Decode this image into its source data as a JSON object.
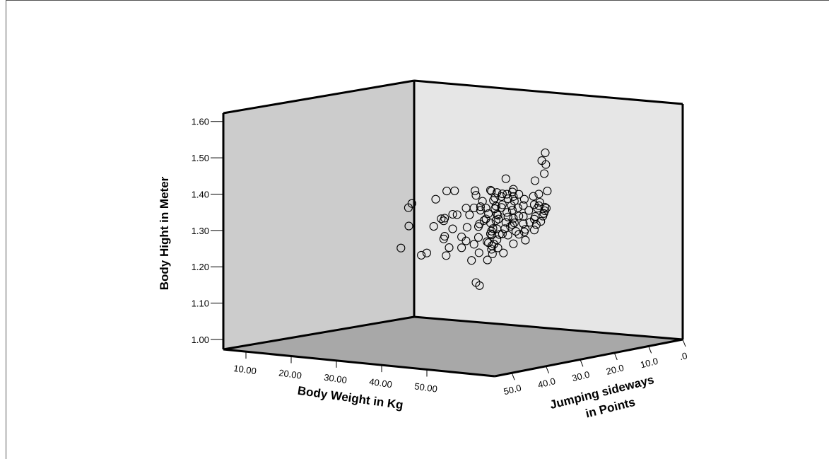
{
  "chart_data": {
    "type": "scatter",
    "subtype": "3d-scatter",
    "xlabel": "Body Weight in Kg",
    "ylabel": "Body Hight in Meter",
    "zlabel_lines": [
      "Jumping sideways",
      "in Points"
    ],
    "x_ticks": [
      "10.00",
      "20.00",
      "30.00",
      "40.00",
      "50.00"
    ],
    "y_ticks": [
      "1.00",
      "1.10",
      "1.20",
      "1.30",
      "1.40",
      "1.50",
      "1.60"
    ],
    "z_ticks": [
      "50.0",
      "40.0",
      "30.0",
      "20.0",
      "10.0",
      ".0"
    ],
    "xlim": [
      5,
      65
    ],
    "ylim": [
      1.0,
      1.65
    ],
    "zlim": [
      0,
      55
    ],
    "marker": "open-circle",
    "colors": {
      "back_left_wall": "#cccccc",
      "back_right_wall": "#e6e6e6",
      "floor": "#a8a8a8",
      "marker": "#000000"
    },
    "points": [
      [
        16,
        1.23,
        18
      ],
      [
        17,
        1.29,
        17
      ],
      [
        19,
        1.21,
        16
      ],
      [
        20,
        1.35,
        21
      ],
      [
        20,
        1.36,
        20
      ],
      [
        21,
        1.22,
        17
      ],
      [
        21,
        1.29,
        15
      ],
      [
        23,
        1.21,
        14
      ],
      [
        23,
        1.37,
        17
      ],
      [
        24,
        1.26,
        16
      ],
      [
        25,
        1.27,
        17
      ],
      [
        25,
        1.32,
        17
      ],
      [
        25,
        1.32,
        18
      ],
      [
        26,
        1.29,
        16
      ],
      [
        26,
        1.24,
        17
      ],
      [
        27,
        1.4,
        19
      ],
      [
        27,
        1.33,
        16
      ],
      [
        28,
        1.27,
        16
      ],
      [
        28,
        1.24,
        16
      ],
      [
        28,
        1.4,
        18
      ],
      [
        29,
        1.33,
        15
      ],
      [
        29,
        1.26,
        16
      ],
      [
        30,
        1.35,
        15
      ],
      [
        30,
        1.25,
        15
      ],
      [
        31,
        1.27,
        15
      ],
      [
        31,
        1.21,
        17
      ],
      [
        31,
        1.3,
        15
      ],
      [
        31,
        1.4,
        16
      ],
      [
        32,
        1.15,
        17
      ],
      [
        32,
        1.14,
        16
      ],
      [
        32,
        1.39,
        17
      ],
      [
        32,
        1.31,
        16
      ],
      [
        33,
        1.32,
        16
      ],
      [
        33,
        1.36,
        17
      ],
      [
        33,
        1.21,
        15
      ],
      [
        34,
        1.28,
        15
      ],
      [
        34,
        1.26,
        16
      ],
      [
        34,
        1.34,
        16
      ],
      [
        35,
        1.24,
        20
      ],
      [
        35,
        1.38,
        19
      ],
      [
        35,
        1.33,
        18
      ],
      [
        35,
        1.3,
        16
      ],
      [
        36,
        1.41,
        18
      ],
      [
        36,
        1.32,
        18
      ],
      [
        36,
        1.29,
        18
      ],
      [
        36,
        1.27,
        19
      ],
      [
        37,
        1.41,
        19
      ],
      [
        37,
        1.36,
        18
      ],
      [
        37,
        1.3,
        19
      ],
      [
        37,
        1.25,
        19
      ],
      [
        38,
        1.37,
        19
      ],
      [
        38,
        1.33,
        19
      ],
      [
        38,
        1.29,
        18
      ],
      [
        38,
        1.24,
        20
      ],
      [
        39,
        1.41,
        20
      ],
      [
        39,
        1.35,
        20
      ],
      [
        39,
        1.31,
        20
      ],
      [
        39,
        1.28,
        20
      ],
      [
        40,
        1.4,
        20
      ],
      [
        40,
        1.35,
        21
      ],
      [
        40,
        1.31,
        19
      ],
      [
        40,
        1.26,
        21
      ],
      [
        41,
        1.45,
        20
      ],
      [
        41,
        1.38,
        21
      ],
      [
        41,
        1.33,
        20
      ],
      [
        41,
        1.3,
        21
      ],
      [
        42,
        1.41,
        21
      ],
      [
        42,
        1.36,
        21
      ],
      [
        42,
        1.32,
        20
      ],
      [
        42,
        1.25,
        22
      ],
      [
        43,
        1.4,
        22
      ],
      [
        43,
        1.35,
        22
      ],
      [
        43,
        1.3,
        22
      ],
      [
        44,
        1.42,
        22
      ],
      [
        44,
        1.37,
        22
      ],
      [
        44,
        1.33,
        22
      ],
      [
        45,
        1.41,
        23
      ],
      [
        45,
        1.35,
        23
      ],
      [
        45,
        1.28,
        23
      ],
      [
        46,
        1.38,
        23
      ],
      [
        46,
        1.34,
        24
      ],
      [
        47,
        1.42,
        24
      ],
      [
        47,
        1.36,
        24
      ],
      [
        47,
        1.31,
        24
      ],
      [
        48,
        1.39,
        24
      ],
      [
        48,
        1.34,
        24
      ],
      [
        49,
        1.41,
        25
      ],
      [
        49,
        1.32,
        25
      ],
      [
        50,
        1.38,
        25
      ],
      [
        50,
        1.3,
        26
      ],
      [
        51,
        1.42,
        25
      ],
      [
        51,
        1.35,
        26
      ],
      [
        52,
        1.4,
        26
      ],
      [
        52,
        1.33,
        26
      ],
      [
        53,
        1.43,
        26
      ],
      [
        53,
        1.37,
        27
      ],
      [
        54,
        1.41,
        27
      ],
      [
        54,
        1.35,
        28
      ],
      [
        55,
        1.49,
        27
      ],
      [
        55,
        1.36,
        28
      ],
      [
        56,
        1.55,
        28
      ],
      [
        56,
        1.53,
        29
      ],
      [
        57,
        1.4,
        29
      ],
      [
        57,
        1.38,
        30
      ],
      [
        58,
        1.45,
        30
      ],
      [
        58,
        1.39,
        31
      ],
      [
        59,
        1.41,
        32
      ],
      [
        59,
        1.4,
        32
      ],
      [
        60,
        1.53,
        33
      ],
      [
        60,
        1.42,
        35
      ],
      [
        62,
        1.42,
        38
      ],
      [
        63,
        1.5,
        40
      ],
      [
        34,
        1.25,
        15
      ],
      [
        36,
        1.26,
        17
      ],
      [
        33,
        1.35,
        17
      ],
      [
        39,
        1.39,
        21
      ],
      [
        43,
        1.38,
        21
      ],
      [
        45,
        1.43,
        23
      ],
      [
        30,
        1.3,
        17
      ],
      [
        29,
        1.35,
        16
      ],
      [
        26,
        1.33,
        16
      ],
      [
        24,
        1.31,
        16
      ],
      [
        37,
        1.33,
        17
      ],
      [
        40,
        1.37,
        20
      ],
      [
        48,
        1.36,
        24
      ],
      [
        46,
        1.4,
        24
      ],
      [
        44,
        1.31,
        21
      ],
      [
        35,
        1.36,
        18
      ],
      [
        37,
        1.39,
        18
      ],
      [
        41,
        1.41,
        21
      ],
      [
        50,
        1.33,
        26
      ],
      [
        52,
        1.36,
        26
      ]
    ]
  }
}
